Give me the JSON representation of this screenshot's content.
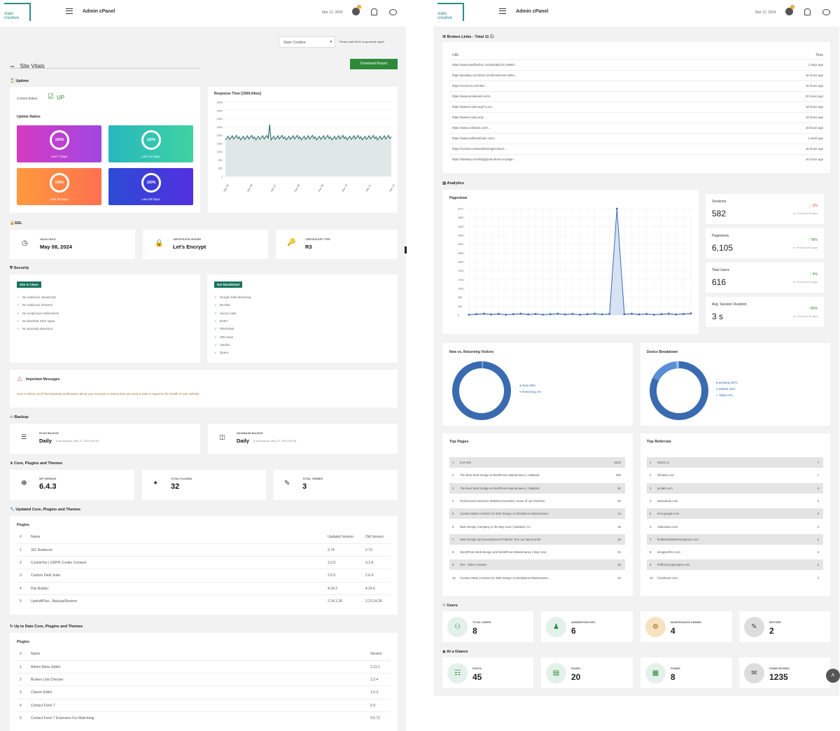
{
  "left": {
    "logo_line1": "state",
    "logo_line2": "creative",
    "header": {
      "title": "Admin cPanel",
      "date": "Mar 12, 2024",
      "badge": "1"
    },
    "site_select": "State Creative",
    "wait_note": "Please wait 54:44 to generate again",
    "site_vitals": "Site Vitals",
    "download": "Download Report",
    "uptime": {
      "heading": "Uptime",
      "current_status_label": "Current Status:",
      "status": "UP",
      "ratios_label": "Uptime Ratios",
      "tiles": [
        {
          "pct": "100%",
          "label": "Last 7 Days"
        },
        {
          "pct": "100%",
          "label": "Last 14 Days"
        },
        {
          "pct": "100%",
          "label": "Last 30 Days"
        },
        {
          "pct": "100%",
          "label": "Last 45 Days"
        }
      ]
    },
    "response": {
      "title": "Response Time [1569.04ms]",
      "y_ticks": [
        "3000",
        "2601",
        "2301",
        "2001",
        "1801",
        "1501",
        "1201",
        "901",
        "601",
        "1"
      ],
      "x_ticks": [
        "Mar 05",
        "Mar 06",
        "Mar 07",
        "Mar 08",
        "Mar 09",
        "Mar 10",
        "Mar 11",
        "Mar 12"
      ]
    },
    "ssl": {
      "heading": "SSL",
      "items": [
        {
          "label": "VALID UNTIL",
          "value": "May 08, 2024"
        },
        {
          "label": "CERTIFICATE ISSUER",
          "value": "Let's Encrypt"
        },
        {
          "label": "CERTIFICATE TYPE",
          "value": "R3"
        }
      ]
    },
    "security": {
      "heading": "Security",
      "clean_tag": "Site is Clean",
      "clean_items": [
        "No malicious JavaScript",
        "No malicious iFrames",
        "No suspicious redirections",
        "No blackhat SEO spam",
        "No anomaly detection"
      ],
      "bl_tag": "Not blacklisted",
      "bl_items": [
        "Google Safe Browsing",
        "McAfee",
        "Sucuri Labs",
        "ESET",
        "PhishTank",
        "URLHaus",
        "Yandex",
        "Opera"
      ]
    },
    "messages": {
      "title": "Important Messages",
      "text": "Here is where you'll find important notifications about your account or actions that you need to take in regard to the health of your website."
    },
    "backup": {
      "heading": "Backup",
      "files": {
        "label": "FILES BACKUP",
        "value": "Daily",
        "note": "(Last backup: Mar 12, 2024 00:00)"
      },
      "db": {
        "label": "DATABASE BACKUP",
        "value": "Daily",
        "note": "(Last backup: Mar 12, 2024 00:05)"
      }
    },
    "core": {
      "heading": "Core, Plugins and Themes",
      "items": [
        {
          "label": "WP VERSION",
          "value": "6.4.3"
        },
        {
          "label": "TOTAL PLUGINS",
          "value": "32"
        },
        {
          "label": "TOTAL THEMES",
          "value": "3"
        }
      ]
    },
    "updated": {
      "heading": "Updated Core, Plugins and Themes",
      "sub": "Plugins",
      "cols": [
        "#",
        "Name",
        "Updated Version",
        "Old Version"
      ],
      "rows": [
        [
          "1",
          "301 Redirects",
          "2.74",
          "2.73"
        ],
        [
          "2",
          "CookieYes | GDPR Cookie Consent",
          "3.2.0",
          "3.1.8"
        ],
        [
          "3",
          "Custom Field Suite",
          "2.6.5",
          "2.6.4"
        ],
        [
          "4",
          "Divi Builder",
          "4.24.2",
          "4.24.0"
        ],
        [
          "5",
          "UpdraftPlus - Backup/Restore",
          "2.24.1.26",
          "2.23.14.26"
        ]
      ]
    },
    "uptodate": {
      "heading": "Up to Date Core, Plugins and Themes",
      "sub": "Plugins",
      "cols": [
        "#",
        "Name",
        "Version"
      ],
      "rows": [
        [
          "1",
          "Admin Menu Editor",
          "1.12.1"
        ],
        [
          "2",
          "Broken Link Checker",
          "2.2.4"
        ],
        [
          "3",
          "Classic Editor",
          "1.6.3"
        ],
        [
          "4",
          "Contact Form 7",
          "5.9"
        ],
        [
          "5",
          "Contact Form 7 Extension For Mailchimp",
          "0.5.72"
        ]
      ]
    }
  },
  "right": {
    "logo_line1": "state",
    "logo_line2": "creative",
    "header": {
      "title": "Admin cPanel",
      "date": "Mar 12, 2024",
      "badge": "1"
    },
    "broken": {
      "heading": "Broken Links - Total 11",
      "cols": [
        "URL",
        "Time"
      ],
      "rows": [
        [
          "https://www.tandfonline.com/doi/abs/10.1080/0...",
          "2 days ago"
        ],
        [
          "https://pixabay.com/2021-small-business-webs...",
          "16 hours ago"
        ],
        [
          "https://connect.com/404...",
          "16 hours ago"
        ],
        [
          "https://www.similarweb.com/...",
          "20 hours ago"
        ],
        [
          "https://www.ecosia.org/?c=en...",
          "19 hours ago"
        ],
        [
          "https://www.ecosia.org/...",
          "19 hours ago"
        ],
        [
          "https://www.coinbase.com/...",
          "16 hours ago"
        ],
        [
          "https://www.riotblockchain.com/...",
          "1 week ago"
        ],
        [
          "https://cosmos.network/learn/get-atom/...",
          "16 hours ago"
        ],
        [
          "https://statewp.com/blog/great-about-us-page-...",
          "16 hours ago"
        ]
      ]
    },
    "analytics": {
      "heading": "Analytics",
      "pageviews_title": "Pageviews",
      "y_ticks": [
        "5127",
        "4840",
        "4400",
        "3960",
        "3520",
        "3080",
        "2640",
        "2200",
        "1760",
        "1320",
        "880",
        "440",
        "0"
      ]
    },
    "stats": [
      {
        "name": "Sessions",
        "value": "582",
        "change": "↓ -3%",
        "vs": "vs. Previous 30 days",
        "color": "#d9534f"
      },
      {
        "name": "Pageviews",
        "value": "6,105",
        "change": "↑ 78%",
        "vs": "vs. Previous 30 days",
        "color": "#2d8a3a"
      },
      {
        "name": "Total Users",
        "value": "616",
        "change": "↑ 4%",
        "vs": "vs. Previous 30 days",
        "color": "#2d8a3a"
      },
      {
        "name": "Avg. Session Duration",
        "value": "3 s",
        "change": "↑ 85%",
        "vs": "vs. Previous 30 days",
        "color": "#2d8a3a"
      }
    ],
    "visitors": {
      "title": "New vs. Returning Visitors",
      "legend": [
        "New 99%",
        "Returning 1%"
      ]
    },
    "devices": {
      "title": "Device Breakdown",
      "legend": [
        "Desktop 82%",
        "Mobile 16%",
        "Tablet 2%"
      ]
    },
    "top_pages": {
      "title": "Top Pages",
      "rows": [
        [
          "1",
          "(not set)",
          "5220"
        ],
        [
          "2",
          "The Best Web Design & WordPress Maintenance | Oakland",
          "350"
        ],
        [
          "3",
          "The Best Web Design & WordPress Maintenance | Oakland",
          "91"
        ],
        [
          "4",
          "Professional Services Website Examples: Some of our favorites",
          "52"
        ],
        [
          "5",
          "Contact State Creative for Web Design or Wordpress Maintenance",
          "44"
        ],
        [
          "6",
          "Web Design Company in the Bay Area | Oakland, CA",
          "30"
        ],
        [
          "7",
          "Web Design and Development Portfolio: See our latest work!",
          "36"
        ],
        [
          "8",
          "WordPress Web Design and WordPress Maintenance | Bay Area",
          "31"
        ],
        [
          "9",
          "404 - State Creative",
          "28"
        ],
        [
          "10",
          "Contact State Creative for Web Design or Wordpress Maintenance",
          "23"
        ]
      ]
    },
    "top_refs": {
      "title": "Top Referrals",
      "rows": [
        [
          "1",
          "clutch.co",
          "7"
        ],
        [
          "2",
          "linfoads.com",
          "7"
        ],
        [
          "3",
          "pinlabi.com",
          "5"
        ],
        [
          "4",
          "awwwards.com",
          "3"
        ],
        [
          "5",
          "lens.google.com",
          "3"
        ],
        [
          "6",
          "10bestseo.com",
          "2"
        ],
        [
          "7",
          "findBestWebDevelopment.com",
          "2"
        ],
        [
          "8",
          "designerfirm.com",
          "2"
        ],
        [
          "9",
          "heffnsrzg.wpengine.com",
          "2"
        ],
        [
          "10",
          "l.facebook.com",
          "2"
        ]
      ]
    },
    "users": {
      "heading": "Users",
      "items": [
        {
          "label": "TOTAL USERS",
          "value": "8"
        },
        {
          "label": "ADMINISTRATORS",
          "value": "6"
        },
        {
          "label": "MAINTENANCE ADMINS",
          "value": "4"
        },
        {
          "label": "EDITORS",
          "value": "2"
        }
      ]
    },
    "glance": {
      "heading": "At a Glance",
      "items": [
        {
          "label": "POSTS",
          "value": "45"
        },
        {
          "label": "PAGES",
          "value": "20"
        },
        {
          "label": "FORMS",
          "value": "8"
        },
        {
          "label": "FORM ENTRIES",
          "value": "1235"
        }
      ]
    }
  }
}
